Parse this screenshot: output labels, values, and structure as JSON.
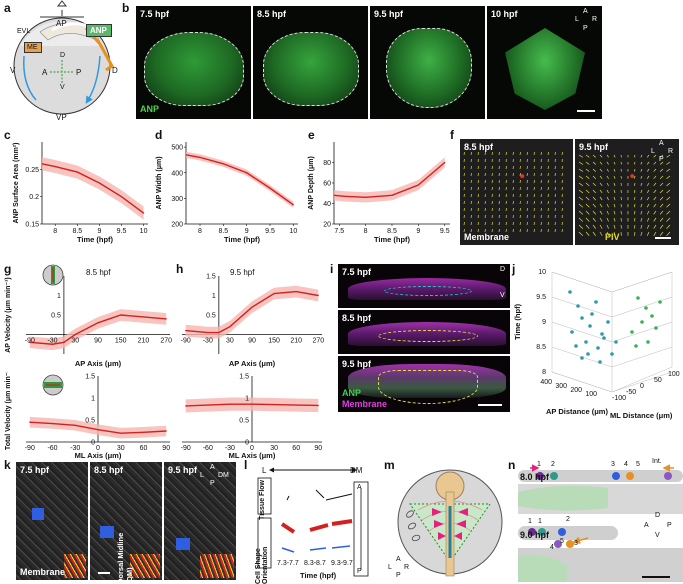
{
  "panels": [
    "a",
    "b",
    "c",
    "d",
    "e",
    "f",
    "g",
    "h",
    "i",
    "j",
    "k",
    "l",
    "m",
    "n"
  ],
  "a": {
    "labels": {
      "ap": "AP",
      "vp": "VP",
      "evl": "EVL",
      "me": "ME",
      "anp": "ANP",
      "v": "V",
      "d": "D",
      "a": "A",
      "p": "P",
      "dd": "D",
      "vv": "V"
    }
  },
  "b": {
    "times": [
      "7.5 hpf",
      "8.5 hpf",
      "9.5 hpf",
      "10 hpf"
    ],
    "stain": "ANP",
    "compass": {
      "a": "A",
      "l": "L",
      "r": "R",
      "p": "P"
    }
  },
  "c": {
    "ylabel": "ANP Surface Area (mm²)",
    "xlabel": "Time (hpf)",
    "yticks": [
      "0.25",
      "0.2",
      "0.15"
    ],
    "xticks": [
      "8",
      "8.5",
      "9",
      "9.5",
      "10"
    ]
  },
  "d": {
    "ylabel": "ANP Width (μm)",
    "xlabel": "Time (hpf)",
    "yticks": [
      "500",
      "400",
      "300",
      "200"
    ],
    "xticks": [
      "8",
      "8.5",
      "9",
      "9.5",
      "10"
    ]
  },
  "e": {
    "ylabel": "ANP Depth (μm)",
    "xlabel": "Time (hpf)",
    "yticks": [
      "80",
      "60",
      "40",
      "20"
    ],
    "xticks": [
      "7.5",
      "8",
      "8.5",
      "9",
      "9.5"
    ]
  },
  "f": {
    "times": [
      "8.5 hpf",
      "9.5 hpf"
    ],
    "membrane": "Membrane",
    "piv": "PIV",
    "compass": {
      "a": "A",
      "l": "L",
      "r": "R",
      "p": "P"
    }
  },
  "g": {
    "time": "8.5 hpf",
    "ylabel_top": "AP Velocity (μm min⁻¹)",
    "xlabel_top": "AP Axis (μm)",
    "ylabel_bot": "Total Velocity (μm min⁻¹)",
    "xlabel_bot": "ML Axis (μm)",
    "xticks_top": [
      "-90",
      "-30",
      "30",
      "90",
      "150",
      "210",
      "270"
    ],
    "yticks_top": [
      "1.5",
      "1",
      "0.5"
    ],
    "yticks_bot": [
      "1.5",
      "1",
      "0.5",
      "0"
    ],
    "xticks_bot": [
      "-90",
      "-60",
      "-30",
      "0",
      "30",
      "60",
      "90"
    ]
  },
  "h": {
    "time": "9.5 hpf",
    "xlabel_top": "AP Axis (μm)",
    "xlabel_bot": "ML Axis (μm)",
    "xticks_top": [
      "-90",
      "-30",
      "30",
      "90",
      "150",
      "210",
      "270"
    ],
    "yticks_top": [
      "1.5",
      "1",
      "0.5"
    ],
    "yticks_bot": [
      "1.5",
      "1",
      "0.5",
      "0"
    ],
    "xticks_bot": [
      "-90",
      "-60",
      "-30",
      "0",
      "30",
      "60",
      "90"
    ]
  },
  "i": {
    "times": [
      "7.5 hpf",
      "8.5 hpf",
      "9.5 hpf"
    ],
    "anp": "ANP",
    "membrane": "Membrane",
    "compass": {
      "d": "D",
      "v": "V"
    }
  },
  "j": {
    "zlabel": "Time (hpf)",
    "xlabel": "AP Distance (μm)",
    "ylabel": "ML Distance (μm)",
    "zticks": [
      "10",
      "9.5",
      "9",
      "8.5",
      "8"
    ],
    "xticks": [
      "400",
      "300",
      "200",
      "100"
    ],
    "yticks": [
      "-100",
      "-50",
      "0",
      "50",
      "100"
    ]
  },
  "k": {
    "times": [
      "7.5 hpf",
      "8.5 hpf",
      "9.5 hpf"
    ],
    "midline": "Dorsal Midline (DM)",
    "membrane": "Membrane",
    "compass": {
      "a": "A",
      "l": "L",
      "dm": "DM",
      "p": "P"
    }
  },
  "l": {
    "tissue_flow": "Tissue Flow",
    "cell_shape": "Cell Shape Orientation",
    "l": "L",
    "dm": "DM",
    "xlabel": "Time (hpf)",
    "times": [
      "7.3-7.7",
      "8.3-8.7",
      "9.3-9.7"
    ],
    "ap": {
      "a": "A",
      "p": "P"
    }
  },
  "m": {
    "compass": {
      "a": "A",
      "l": "L",
      "r": "R",
      "p": "P"
    }
  },
  "n": {
    "times": [
      "8.0 hpf",
      "9.0 hpf"
    ],
    "int": "Int.",
    "nums_top": [
      "1",
      "2",
      "3",
      "4",
      "5"
    ],
    "nums_bot": [
      "1",
      "1",
      "2",
      "3",
      "4",
      "5"
    ],
    "compass": {
      "d": "D",
      "a": "A",
      "p": "P",
      "v": "V"
    }
  },
  "chart_data": [
    {
      "type": "line",
      "panel": "c",
      "title": "",
      "xlabel": "Time (hpf)",
      "ylabel": "ANP Surface Area (mm²)",
      "x": [
        7.7,
        8.0,
        8.5,
        9.0,
        9.5,
        10.0
      ],
      "y": [
        0.26,
        0.255,
        0.245,
        0.225,
        0.2,
        0.17
      ],
      "xlim": [
        7.7,
        10.1
      ],
      "ylim": [
        0.15,
        0.3
      ]
    },
    {
      "type": "line",
      "panel": "d",
      "title": "",
      "xlabel": "Time (hpf)",
      "ylabel": "ANP Width (μm)",
      "x": [
        7.7,
        8.0,
        8.5,
        9.0,
        9.5,
        10.0
      ],
      "y": [
        470,
        460,
        435,
        400,
        340,
        275
      ],
      "xlim": [
        7.7,
        10.1
      ],
      "ylim": [
        200,
        520
      ]
    },
    {
      "type": "line",
      "panel": "e",
      "title": "",
      "xlabel": "Time (hpf)",
      "ylabel": "ANP Depth (μm)",
      "x": [
        7.4,
        7.6,
        8.0,
        8.5,
        9.0,
        9.5
      ],
      "y": [
        48,
        47,
        46,
        48,
        58,
        80
      ],
      "xlim": [
        7.4,
        9.6
      ],
      "ylim": [
        20,
        100
      ]
    },
    {
      "type": "line",
      "panel": "g-top",
      "title": "8.5 hpf",
      "xlabel": "AP Axis (μm)",
      "ylabel": "AP Velocity (μm min⁻¹)",
      "x": [
        -90,
        -30,
        0,
        30,
        90,
        150,
        210,
        270
      ],
      "y": [
        -0.2,
        -0.25,
        -0.2,
        0.0,
        0.3,
        0.5,
        0.45,
        0.4
      ],
      "xlim": [
        -100,
        280
      ],
      "ylim": [
        -0.5,
        1.5
      ]
    },
    {
      "type": "line",
      "panel": "h-top",
      "title": "9.5 hpf",
      "xlabel": "AP Axis (μm)",
      "ylabel": "",
      "x": [
        -90,
        -30,
        0,
        30,
        90,
        150,
        210,
        270
      ],
      "y": [
        0.1,
        0.05,
        0.05,
        0.2,
        0.7,
        1.05,
        1.1,
        1.0
      ],
      "xlim": [
        -100,
        280
      ],
      "ylim": [
        -0.5,
        1.5
      ]
    },
    {
      "type": "line",
      "panel": "g-bot",
      "title": "",
      "xlabel": "ML Axis (μm)",
      "ylabel": "Total Velocity (μm min⁻¹)",
      "x": [
        -90,
        -60,
        -30,
        0,
        30,
        60,
        90
      ],
      "y": [
        0.45,
        0.42,
        0.38,
        0.28,
        0.2,
        0.22,
        0.25
      ],
      "xlim": [
        -95,
        95
      ],
      "ylim": [
        0,
        1.5
      ]
    },
    {
      "type": "line",
      "panel": "h-bot",
      "title": "",
      "xlabel": "ML Axis (μm)",
      "ylabel": "",
      "x": [
        -90,
        -60,
        -30,
        0,
        30,
        60,
        90
      ],
      "y": [
        0.82,
        0.84,
        0.86,
        0.86,
        0.85,
        0.84,
        0.83
      ],
      "xlim": [
        -95,
        95
      ],
      "ylim": [
        0,
        1.5
      ]
    }
  ],
  "colors": {
    "anp": "#3dbb3d",
    "line": "#d42020",
    "band": "#f5b5b0",
    "membrane": "#e040e0",
    "piv": "#e8e020",
    "blue": "#2f5fe0",
    "pink": "#e6207d"
  }
}
